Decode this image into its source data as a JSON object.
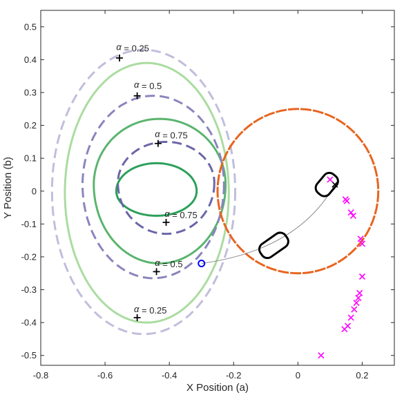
{
  "chart_data": {
    "type": "line",
    "title": "",
    "xlabel": "X Position (a)",
    "ylabel": "Y Position (b)",
    "xlim": [
      -0.8,
      0.3
    ],
    "ylim": [
      -0.53,
      0.55
    ],
    "xticks": [
      -0.8,
      -0.6,
      -0.4,
      -0.2,
      0,
      0.2
    ],
    "xtick_labels": [
      "-0.8",
      "-0.6",
      "-0.4",
      "-0.2",
      "0",
      "0.2"
    ],
    "yticks": [
      -0.5,
      -0.4,
      -0.3,
      -0.2,
      -0.1,
      0,
      0.1,
      0.2,
      0.3,
      0.4,
      0.5
    ],
    "ytick_labels": [
      "-0.5",
      "-0.4",
      "-0.3",
      "-0.2",
      "-0.1",
      "0",
      "0.1",
      "0.2",
      "0.3",
      "0.4",
      "0.5"
    ],
    "grid": false,
    "box": true,
    "contours": [
      {
        "kind": "green",
        "level": 0.75,
        "center": [
          -0.44,
          0.0
        ],
        "rx": 0.125,
        "ry_top": 0.085,
        "ry_bot": 0.075,
        "color": "#2ca05a",
        "dashed": false
      },
      {
        "kind": "green",
        "level": 0.5,
        "center": [
          -0.43,
          0.02
        ],
        "rx": 0.205,
        "ry_top": 0.2,
        "ry_bot": 0.24,
        "color": "#5ab46e",
        "dashed": false
      },
      {
        "kind": "green",
        "level": 0.25,
        "center": [
          -0.47,
          -0.005
        ],
        "rx": 0.255,
        "ry_top": 0.395,
        "ry_bot": 0.395,
        "color": "#aadca0",
        "dashed": false
      },
      {
        "kind": "purple",
        "level": 0.75,
        "center": [
          -0.41,
          0.025
        ],
        "rx": 0.15,
        "ry_top": 0.125,
        "ry_bot": 0.155,
        "color": "#6a66a8",
        "dashed": true
      },
      {
        "kind": "purple",
        "level": 0.5,
        "center": [
          -0.45,
          0.02
        ],
        "rx": 0.22,
        "ry_top": 0.27,
        "ry_bot": 0.285,
        "color": "#8a85bd",
        "dashed": true
      },
      {
        "kind": "purple",
        "level": 0.25,
        "center": [
          -0.48,
          0.0
        ],
        "rx": 0.285,
        "ry_top": 0.43,
        "ry_bot": 0.435,
        "color": "#c0bedc",
        "dashed": true
      }
    ],
    "alpha_labels": [
      {
        "text": "= 0.25",
        "greek": "α",
        "marker": [
          -0.555,
          0.405
        ],
        "anchor": [
          -0.565,
          0.425
        ]
      },
      {
        "text": "= 0.5",
        "greek": "α",
        "marker": [
          -0.5,
          0.29
        ],
        "anchor": [
          -0.51,
          0.31
        ]
      },
      {
        "text": "= 0.75",
        "greek": "α",
        "marker": [
          -0.435,
          0.145
        ],
        "anchor": [
          -0.445,
          0.16
        ]
      },
      {
        "text": "= 0.75",
        "greek": "α",
        "marker": [
          -0.41,
          -0.095
        ],
        "anchor": [
          -0.415,
          -0.082
        ]
      },
      {
        "text": "= 0.5",
        "greek": "α",
        "marker": [
          -0.44,
          -0.245
        ],
        "anchor": [
          -0.445,
          -0.232
        ]
      },
      {
        "text": "= 0.25",
        "greek": "α",
        "marker": [
          -0.5,
          -0.385
        ],
        "anchor": [
          -0.51,
          -0.372
        ]
      }
    ],
    "circle": {
      "center": [
        0.0,
        0.0
      ],
      "radius": 0.25,
      "color": "#e8641e"
    },
    "trajectory": {
      "start": [
        -0.3,
        -0.22
      ],
      "control": [
        0.0,
        -0.18
      ],
      "end": [
        0.115,
        0.02
      ],
      "start_marker_color": "#0000ff",
      "end_marker": "x"
    },
    "rounded_rects": [
      {
        "center": [
          -0.075,
          -0.165
        ],
        "length": 0.095,
        "width": 0.048,
        "angle_deg": 35
      },
      {
        "center": [
          0.09,
          0.02
        ],
        "length": 0.075,
        "width": 0.048,
        "angle_deg": 50
      }
    ],
    "magenta_points": {
      "color": "#ff00ff",
      "x": [
        0.1,
        0.148,
        0.152,
        0.165,
        0.172,
        0.195,
        0.2,
        0.2,
        0.192,
        0.188,
        0.182,
        0.175,
        0.165,
        0.155,
        0.145,
        0.072
      ],
      "y": [
        0.035,
        -0.025,
        -0.03,
        -0.065,
        -0.075,
        -0.145,
        -0.16,
        -0.26,
        -0.31,
        -0.325,
        -0.34,
        -0.36,
        -0.385,
        -0.41,
        -0.42,
        -0.5
      ]
    }
  }
}
